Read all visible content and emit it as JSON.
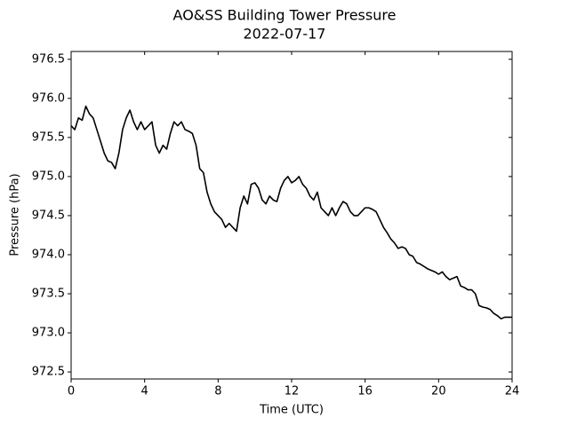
{
  "chart_data": {
    "type": "line",
    "title": "AO&SS Building Tower Pressure",
    "subtitle": "2022-07-17",
    "x_label": "Time (UTC)",
    "y_label": "Pressure (hPa)",
    "color": "#000000",
    "x": [
      0,
      0.2,
      0.4,
      0.6,
      0.8,
      1,
      1.2,
      1.4,
      1.6,
      1.8,
      2,
      2.2,
      2.4,
      2.6,
      2.8,
      3,
      3.2,
      3.4,
      3.6,
      3.8,
      4,
      4.2,
      4.4,
      4.6,
      4.8,
      5,
      5.2,
      5.4,
      5.6,
      5.8,
      6,
      6.2,
      6.4,
      6.6,
      6.8,
      7,
      7.2,
      7.4,
      7.6,
      7.8,
      8,
      8.2,
      8.4,
      8.6,
      8.8,
      9,
      9.2,
      9.4,
      9.6,
      9.8,
      10,
      10.2,
      10.4,
      10.6,
      10.8,
      11,
      11.2,
      11.4,
      11.6,
      11.8,
      12,
      12.2,
      12.4,
      12.6,
      12.8,
      13,
      13.2,
      13.4,
      13.6,
      13.8,
      14,
      14.2,
      14.4,
      14.6,
      14.8,
      15,
      15.2,
      15.4,
      15.6,
      15.8,
      16,
      16.2,
      16.4,
      16.6,
      16.8,
      17,
      17.2,
      17.4,
      17.6,
      17.8,
      18,
      18.2,
      18.4,
      18.6,
      18.8,
      19,
      19.2,
      19.4,
      19.6,
      19.8,
      20,
      20.2,
      20.4,
      20.6,
      20.8,
      21,
      21.2,
      21.4,
      21.6,
      21.8,
      22,
      22.2,
      22.4,
      22.6,
      22.8,
      23,
      23.2,
      23.4,
      23.6,
      23.8,
      24
    ],
    "values": [
      975.65,
      975.6,
      975.75,
      975.72,
      975.9,
      975.8,
      975.75,
      975.6,
      975.45,
      975.3,
      975.2,
      975.18,
      975.1,
      975.3,
      975.6,
      975.75,
      975.85,
      975.7,
      975.6,
      975.7,
      975.6,
      975.65,
      975.7,
      975.4,
      975.3,
      975.4,
      975.35,
      975.55,
      975.7,
      975.65,
      975.7,
      975.6,
      975.58,
      975.55,
      975.4,
      975.1,
      975.05,
      974.8,
      974.65,
      974.55,
      974.5,
      974.45,
      974.35,
      974.4,
      974.35,
      974.3,
      974.6,
      974.75,
      974.65,
      974.9,
      974.92,
      974.85,
      974.7,
      974.65,
      974.75,
      974.7,
      974.68,
      974.85,
      974.95,
      975.0,
      974.92,
      974.95,
      975.0,
      974.9,
      974.85,
      974.75,
      974.7,
      974.8,
      974.6,
      974.55,
      974.5,
      974.6,
      974.5,
      974.6,
      974.68,
      974.65,
      974.55,
      974.5,
      974.5,
      974.55,
      974.6,
      974.6,
      974.58,
      974.55,
      974.45,
      974.35,
      974.28,
      974.2,
      974.15,
      974.08,
      974.1,
      974.08,
      974.0,
      973.98,
      973.9,
      973.88,
      973.85,
      973.82,
      973.8,
      973.78,
      973.75,
      973.78,
      973.72,
      973.68,
      973.7,
      973.72,
      973.6,
      973.58,
      973.55,
      973.55,
      973.5,
      973.35,
      973.33,
      973.32,
      973.3,
      973.25,
      973.22,
      973.18,
      973.2,
      973.2,
      973.2
    ],
    "xlim": [
      0,
      24
    ],
    "xticks": [
      0,
      4,
      8,
      12,
      16,
      20,
      24
    ],
    "ylim": [
      972.41,
      976.6
    ],
    "yticks": [
      972.5,
      {
        "value": 973,
        "label": "973.0"
      },
      973.5,
      {
        "value": 974,
        "label": "974.0"
      },
      974.5,
      {
        "value": 975,
        "label": "975.0"
      },
      975.5,
      {
        "value": 976,
        "label": "976.0"
      },
      976.5
    ]
  }
}
